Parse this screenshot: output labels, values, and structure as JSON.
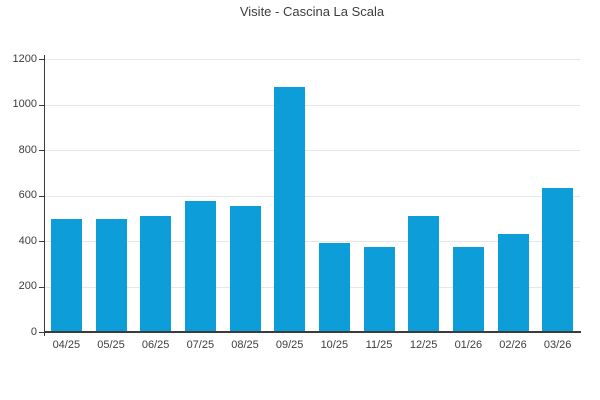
{
  "page": {
    "background_color": "#ffffff"
  },
  "chart_data": {
    "type": "bar",
    "title": "Visite - Cascina La Scala",
    "categories": [
      "04/25",
      "05/25",
      "06/25",
      "07/25",
      "08/25",
      "09/25",
      "10/25",
      "11/25",
      "12/25",
      "01/26",
      "02/26",
      "03/26"
    ],
    "values": [
      495,
      495,
      510,
      575,
      555,
      1075,
      390,
      375,
      510,
      375,
      430,
      635
    ],
    "xlabel": "",
    "ylabel": "",
    "ylim": [
      0,
      1200
    ],
    "y_ticks": [
      0,
      200,
      400,
      600,
      800,
      1000,
      1200
    ],
    "grid": true,
    "legend_position": "none",
    "bar_color": "#0d9dd8",
    "grid_color": "#e6e6e6",
    "axis_color": "#3c3c3c",
    "text_color": "#3d3d3d"
  }
}
